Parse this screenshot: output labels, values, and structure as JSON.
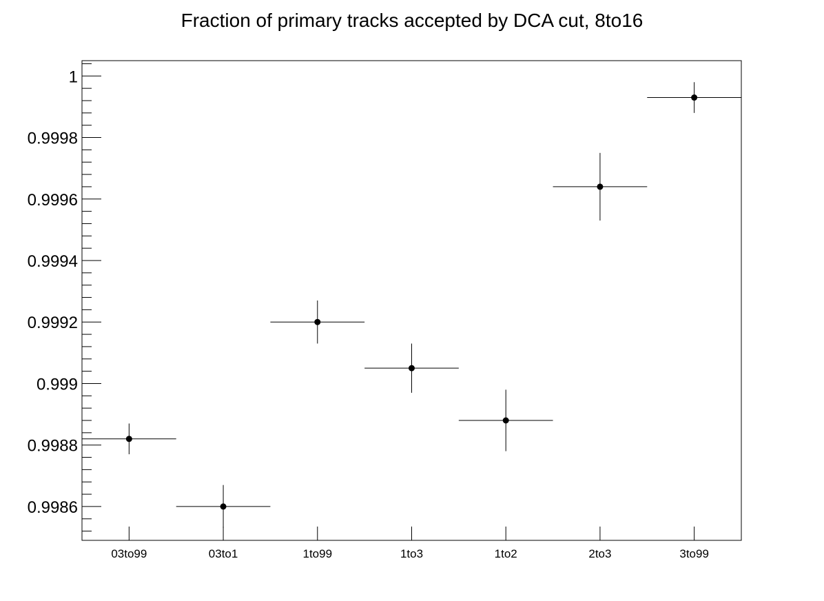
{
  "chart_data": {
    "type": "scatter",
    "title": "Fraction of primary tracks accepted by DCA cut, 8to16",
    "xlabel": "",
    "ylabel": "",
    "categories": [
      "03to99",
      "03to1",
      "1to99",
      "1to3",
      "1to2",
      "2to3",
      "3to99"
    ],
    "values": [
      0.99882,
      0.9986,
      0.9992,
      0.99905,
      0.99888,
      0.99964,
      0.99993
    ],
    "errors": [
      5e-05,
      7e-05,
      7e-05,
      8e-05,
      0.0001,
      0.00011,
      5e-05
    ],
    "ylim": [
      0.99849,
      1.00005
    ],
    "yticks": [
      0.9986,
      0.9988,
      0.999,
      0.9992,
      0.9994,
      0.9996,
      0.9998,
      1
    ],
    "ytick_labels": [
      "0.9986",
      "0.9988",
      "0.999",
      "0.9992",
      "0.9994",
      "0.9996",
      "0.9998",
      "1"
    ],
    "grid": false,
    "legend": "none",
    "colors": {
      "marker": "#000000",
      "axis": "#000000",
      "background": "#ffffff"
    }
  }
}
